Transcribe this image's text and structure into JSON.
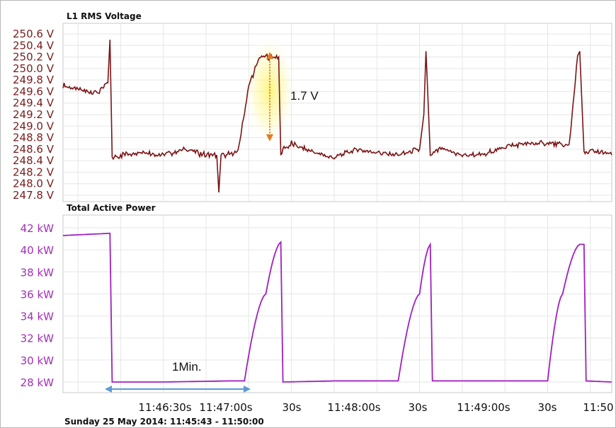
{
  "chart_data": [
    {
      "type": "line",
      "title": "L1 RMS Voltage",
      "unit": "V",
      "ylim": [
        247.8,
        250.6
      ],
      "yticks": [
        "250.6 V",
        "250.4 V",
        "250.2 V",
        "250.0 V",
        "249.8 V",
        "249.6 V",
        "249.4 V",
        "249.2 V",
        "249.0 V",
        "248.8 V",
        "248.6 V",
        "248.4 V",
        "248.2 V",
        "248.0 V",
        "247.8 V"
      ],
      "grid": true,
      "color": "#7b1416",
      "series": [
        {
          "x": [
            "11:45:43",
            "11:45:53",
            "11:46:00",
            "11:46:04",
            "11:46:05",
            "11:46:06",
            "11:46:10",
            "11:46:20",
            "11:46:30",
            "11:46:40",
            "11:46:50",
            "11:46:55",
            "11:46:56",
            "11:46:57",
            "11:47:00",
            "11:47:05",
            "11:47:10",
            "11:47:15",
            "11:47:16",
            "11:47:20",
            "11:47:24",
            "11:47:25",
            "11:47:26",
            "11:47:30",
            "11:47:40",
            "11:47:50",
            "11:48:00",
            "11:48:10",
            "11:48:20",
            "11:48:30",
            "11:48:32",
            "11:48:33",
            "11:48:35",
            "11:48:40",
            "11:48:50",
            "11:49:00",
            "11:49:10",
            "11:49:20",
            "11:49:30",
            "11:49:40",
            "11:49:44",
            "11:49:45",
            "11:49:47",
            "11:49:55",
            "11:50:00"
          ],
          "values": [
            249.7,
            249.6,
            249.6,
            249.75,
            250.5,
            248.45,
            248.5,
            248.55,
            248.5,
            248.6,
            248.5,
            248.5,
            247.85,
            248.5,
            248.5,
            248.55,
            249.7,
            250.2,
            250.2,
            250.2,
            250.2,
            248.45,
            248.6,
            248.7,
            248.55,
            248.45,
            248.6,
            248.55,
            248.5,
            248.6,
            249.2,
            250.3,
            248.5,
            248.6,
            248.5,
            248.5,
            248.65,
            248.7,
            248.7,
            248.65,
            250.2,
            250.3,
            248.55,
            248.55,
            248.5
          ]
        }
      ],
      "annotations": {
        "delta_label": "1.7 V",
        "delta_range": [
          248.6,
          250.3
        ]
      }
    },
    {
      "type": "line",
      "title": "Total Active Power",
      "unit": "kW",
      "ylim": [
        27.5,
        42.5
      ],
      "yticks": [
        "42 kW",
        "40 kW",
        "38 kW",
        "36 kW",
        "34 kW",
        "32 kW",
        "30 kW",
        "28 kW"
      ],
      "grid": true,
      "color": "#a020c0",
      "series": [
        {
          "x": [
            "11:45:43",
            "11:46:05",
            "11:46:06",
            "11:46:30",
            "11:47:00",
            "11:47:08",
            "11:47:18",
            "11:47:25",
            "11:47:26",
            "11:47:50",
            "11:48:20",
            "11:48:30",
            "11:48:35",
            "11:48:36",
            "11:49:00",
            "11:49:30",
            "11:49:37",
            "11:49:45",
            "11:49:47",
            "11:49:48",
            "11:50:00"
          ],
          "values": [
            41.3,
            41.5,
            28.0,
            28.0,
            28.1,
            28.1,
            36.0,
            40.7,
            28.0,
            28.1,
            28.1,
            36.0,
            40.5,
            28.1,
            28.1,
            28.1,
            36.0,
            40.5,
            40.5,
            28.1,
            28.0
          ]
        }
      ],
      "annotations": {
        "duration_label": "1Min."
      }
    }
  ],
  "x_axis": {
    "ticks": [
      "11:46:30s",
      "11:47:00s",
      "30s",
      "11:48:00s",
      "30s",
      "11:49:00s",
      "30s",
      "11:50"
    ]
  },
  "footer": "Sunday 25 May 2014: 11:45:43 - 11:50:00"
}
